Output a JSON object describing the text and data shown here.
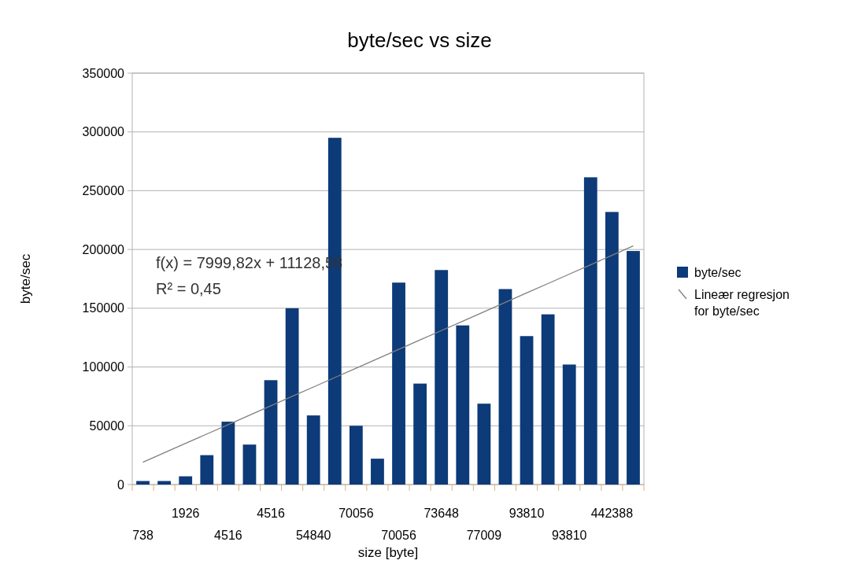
{
  "chart_data": {
    "type": "bar",
    "title": "byte/sec vs size",
    "xlabel": "size [byte]",
    "ylabel": "byte/sec",
    "categories": [
      "738",
      null,
      "1926",
      null,
      "4516",
      null,
      "4516",
      null,
      "54840",
      null,
      "70056",
      null,
      "70056",
      null,
      "73648",
      null,
      "77009",
      null,
      "93810",
      null,
      "93810",
      null,
      "442388",
      null
    ],
    "series": [
      {
        "name": "byte/sec",
        "color": "#0d3a78",
        "values": [
          3000,
          3000,
          7000,
          25000,
          53500,
          34000,
          88800,
          150000,
          58800,
          295000,
          50000,
          22000,
          171800,
          85900,
          182500,
          135400,
          68800,
          166300,
          126300,
          144800,
          102100,
          261400,
          231900,
          198700
        ]
      },
      {
        "name": "Lineær regresjon for byte/sec",
        "type": "line",
        "color": "#808080",
        "values": [
          19000,
          27000,
          35000,
          43000,
          51000,
          59000,
          67000,
          75000,
          83000,
          91000,
          99000,
          107000,
          115000,
          123000,
          131000,
          139000,
          147000,
          155000,
          163000,
          171000,
          179000,
          187000,
          195000,
          203000
        ]
      }
    ],
    "ylim": [
      0,
      350000
    ],
    "yticks": [
      0,
      50000,
      100000,
      150000,
      200000,
      250000,
      300000,
      350000
    ],
    "grid": "y",
    "legend": "right",
    "annotations": [
      "f(x) = 7999,82x + 11128,58",
      "R² = 0,45"
    ]
  }
}
